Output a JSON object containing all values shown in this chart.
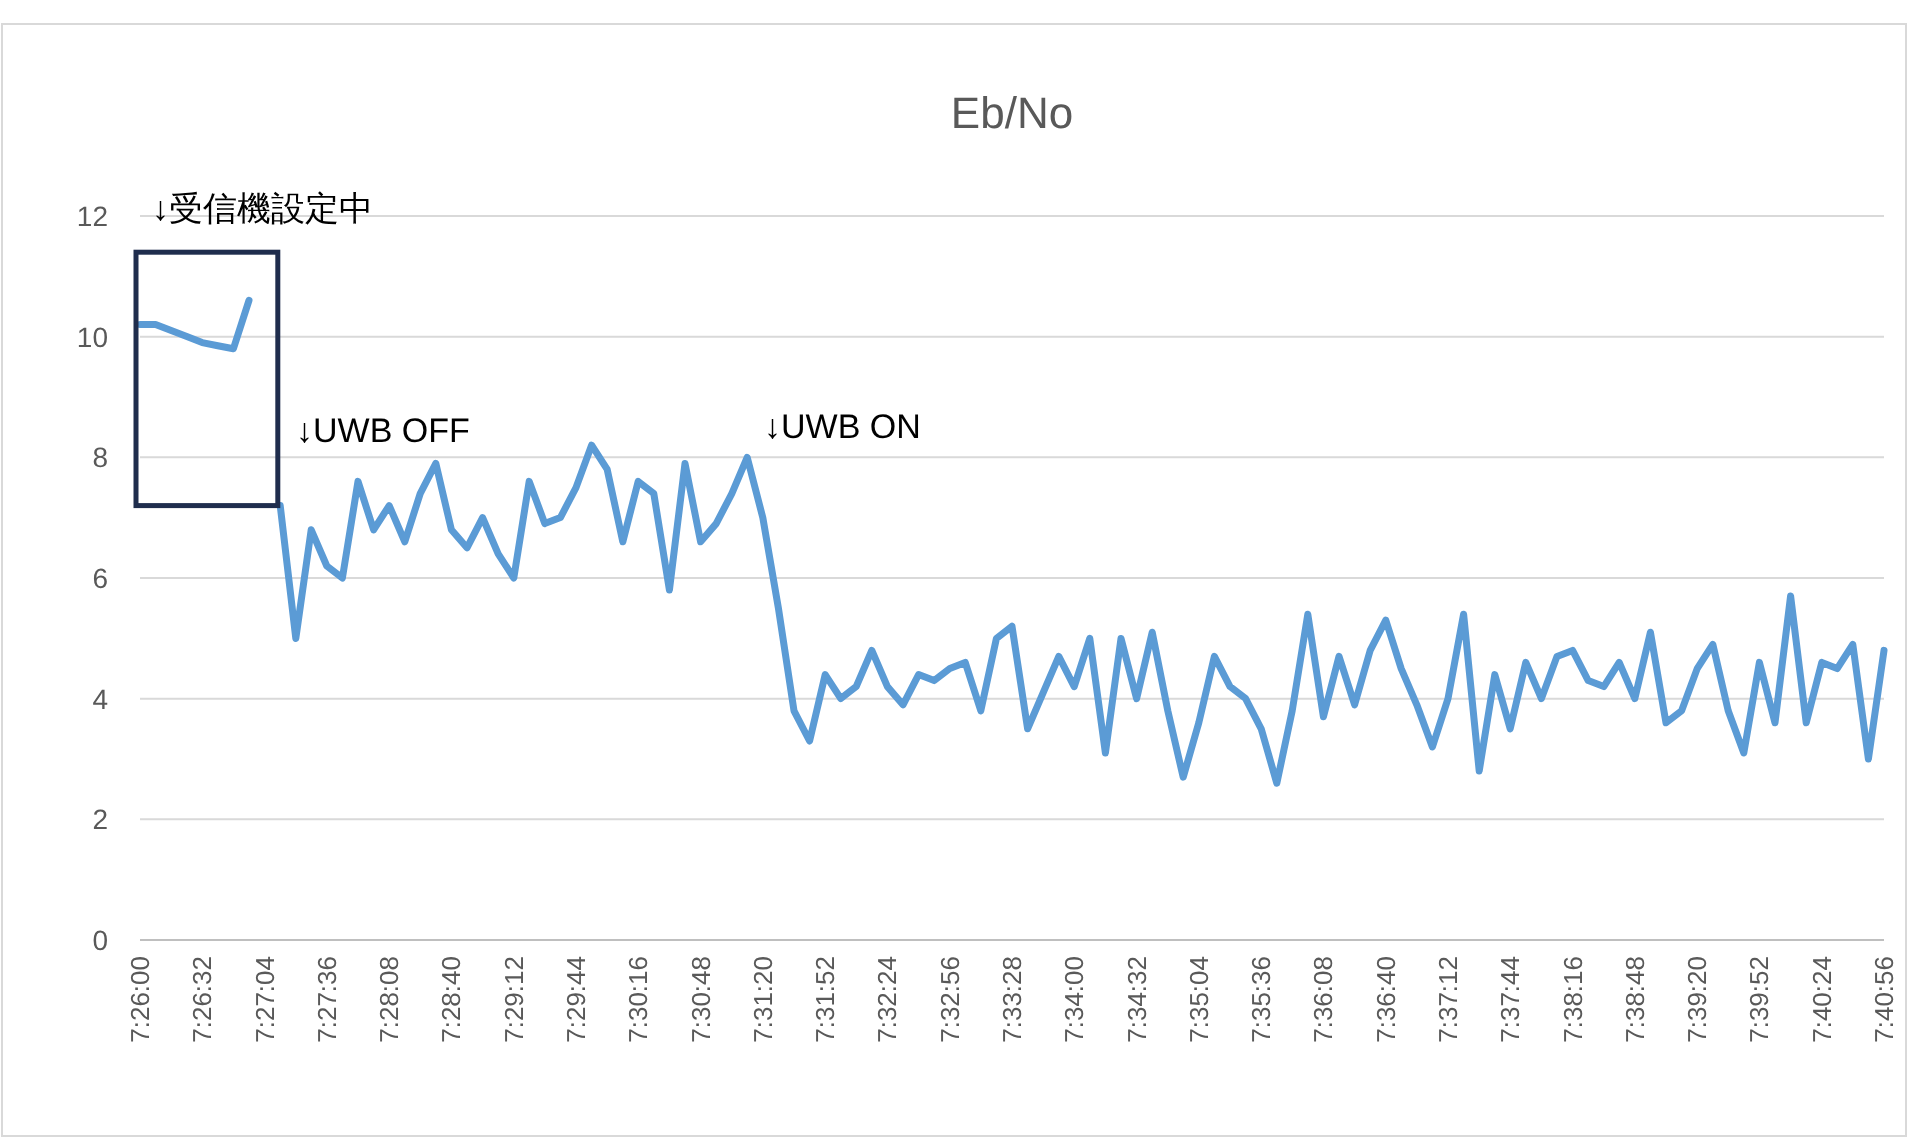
{
  "chart_data": {
    "type": "line",
    "title": "Eb/No",
    "categories": [
      "7:26:00",
      null,
      null,
      null,
      "7:26:32",
      null,
      null,
      null,
      "7:27:04",
      null,
      null,
      null,
      "7:27:36",
      null,
      null,
      null,
      "7:28:08",
      null,
      null,
      null,
      "7:28:40",
      null,
      null,
      null,
      "7:29:12",
      null,
      null,
      null,
      "7:29:44",
      null,
      null,
      null,
      "7:30:16",
      null,
      null,
      null,
      "7:30:48",
      null,
      null,
      null,
      "7:31:20",
      null,
      null,
      null,
      "7:31:52",
      null,
      null,
      null,
      "7:32:24",
      null,
      null,
      null,
      "7:32:56",
      null,
      null,
      null,
      "7:33:28",
      null,
      null,
      null,
      "7:34:00",
      null,
      null,
      null,
      "7:34:32",
      null,
      null,
      null,
      "7:35:04",
      null,
      null,
      null,
      "7:35:36",
      null,
      null,
      null,
      "7:36:08",
      null,
      null,
      null,
      "7:36:40",
      null,
      null,
      null,
      "7:37:12",
      null,
      null,
      null,
      "7:37:44",
      null,
      null,
      null,
      "7:38:16",
      null,
      null,
      null,
      "7:38:48",
      null,
      null,
      null,
      "7:39:20",
      null,
      null,
      null,
      "7:39:52",
      null,
      null,
      null,
      "7:40:24",
      null,
      null,
      null,
      "7:40:56"
    ],
    "series": [
      {
        "color": "#5b9bd5",
        "values": [
          10.2,
          10.2,
          10.1,
          10.0,
          9.9,
          9.85,
          9.8,
          10.6,
          null,
          7.2,
          5.0,
          6.8,
          6.2,
          6.0,
          7.6,
          6.8,
          7.2,
          6.6,
          7.4,
          7.9,
          6.8,
          6.5,
          7.0,
          6.4,
          6.0,
          7.6,
          6.9,
          7.0,
          7.5,
          8.2,
          7.8,
          6.6,
          7.6,
          7.4,
          5.8,
          7.9,
          6.6,
          6.9,
          7.4,
          8.0,
          7.0,
          5.5,
          3.8,
          3.3,
          4.4,
          4.0,
          4.2,
          4.8,
          4.2,
          3.9,
          4.4,
          4.3,
          4.5,
          4.6,
          3.8,
          5.0,
          5.2,
          3.5,
          4.1,
          4.7,
          4.2,
          5.0,
          3.1,
          5.0,
          4.0,
          5.1,
          3.8,
          2.7,
          3.6,
          4.7,
          4.2,
          4.0,
          3.5,
          2.6,
          3.8,
          5.4,
          3.7,
          4.7,
          3.9,
          4.8,
          5.3,
          4.5,
          3.9,
          3.2,
          4.0,
          5.4,
          2.8,
          4.4,
          3.5,
          4.6,
          4.0,
          4.7,
          4.8,
          4.3,
          4.2,
          4.6,
          4.0,
          5.1,
          3.6,
          3.8,
          4.5,
          4.9,
          3.8,
          3.1,
          4.6,
          3.6,
          5.7,
          3.6,
          4.6,
          4.5,
          4.9,
          3.0,
          4.8
        ]
      }
    ],
    "ylim": [
      0,
      12
    ],
    "yticks": [
      0,
      2,
      4,
      6,
      8,
      10,
      12
    ],
    "grid": "y",
    "annotations": [
      "↓受信機設定中",
      "↓UWB OFF",
      "↓UWB ON"
    ]
  }
}
